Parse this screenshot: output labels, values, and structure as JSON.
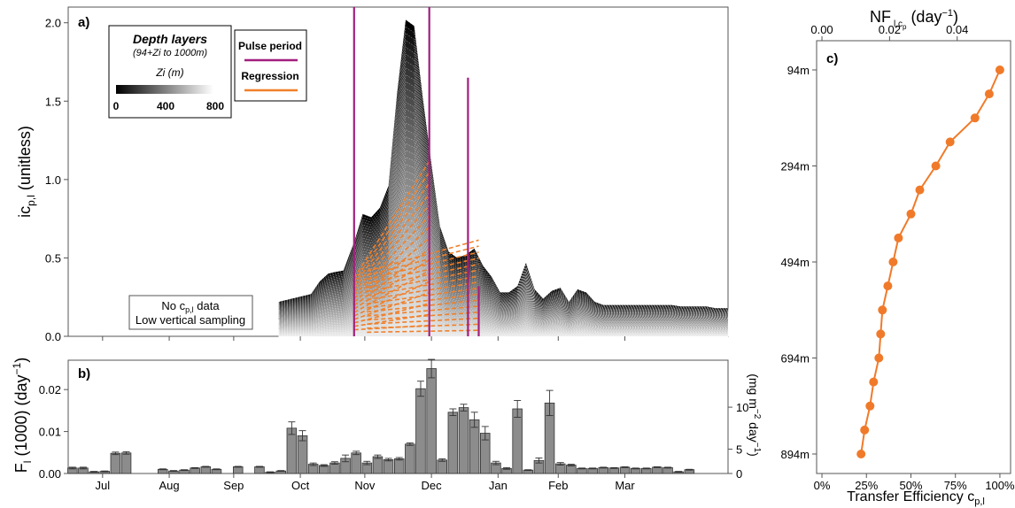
{
  "chart_data": [
    {
      "panel": "a)",
      "type": "area",
      "ylabel": "ic",
      "ylabel_sub": "p,l",
      "ylabel_unit": "(unitless)",
      "ylim": [
        0,
        2.1
      ],
      "yticks": [
        0.0,
        0.5,
        1.0,
        1.5,
        2.0
      ],
      "ytick_labels": [
        "0.0",
        "0.5",
        "1.0",
        "1.5",
        "2.0"
      ],
      "xlim": [
        0,
        307
      ],
      "x": [
        98,
        113,
        117,
        121,
        124,
        128,
        133,
        137,
        141,
        145,
        149,
        153,
        157,
        161,
        165,
        169,
        173,
        177,
        181,
        185,
        189,
        193,
        197,
        201,
        205,
        209,
        213,
        217,
        221,
        225,
        229,
        233,
        237,
        241,
        245,
        249,
        253,
        257,
        261,
        265,
        269,
        273,
        277,
        281,
        285,
        289,
        293,
        297,
        301,
        305,
        307
      ],
      "top_values": [
        0.22,
        0.27,
        0.35,
        0.4,
        0.41,
        0.42,
        0.6,
        0.78,
        0.76,
        0.82,
        0.96,
        1.55,
        2.02,
        1.98,
        1.52,
        1.1,
        0.7,
        0.54,
        0.5,
        0.52,
        0.56,
        0.45,
        0.38,
        0.28,
        0.28,
        0.32,
        0.47,
        0.3,
        0.24,
        0.29,
        0.31,
        0.22,
        0.3,
        0.28,
        0.22,
        0.2,
        0.2,
        0.2,
        0.2,
        0.2,
        0.2,
        0.2,
        0.2,
        0.2,
        0.19,
        0.19,
        0.19,
        0.19,
        0.18,
        0.18,
        0.18
      ],
      "depth_layers": 46,
      "pulse_period_lines": [
        133,
        168,
        186,
        191
      ],
      "legend_depth": {
        "title": "Depth layers",
        "subtitle": "(94+Zi to 1000m)",
        "bar_title": "Zi (m)",
        "bar_ticks": [
          "0",
          "400",
          "800"
        ]
      },
      "legend_lines": [
        {
          "name": "Pulse period",
          "color": "#a21f7e"
        },
        {
          "name": "Regression",
          "color": "#f0802a"
        }
      ],
      "annotation_line1": "No c",
      "annotation_line1_sub": "p,l",
      "annotation_line1_tail": " data",
      "annotation_line2": "Low vertical sampling"
    },
    {
      "panel": "b)",
      "type": "bar",
      "ylabel": "F",
      "ylabel_sub": "l",
      "ylabel_tail": " (1000) (day",
      "ylabel_sup": "−1",
      "ylabel_close": ")",
      "ylim": [
        0,
        0.027
      ],
      "yticks": [
        0.0,
        0.01,
        0.02
      ],
      "ytick_labels": [
        "0.00",
        "0.01",
        "0.02"
      ],
      "ylabel_right": "(mg m",
      "ylabel_right_sup": "−2",
      "ylabel_right_tail": " day",
      "ylabel_right_sup2": "−1",
      "ylabel_right_close": ")",
      "yticks_right": [
        0,
        5,
        10
      ],
      "ytick_labels_right": [
        "0",
        "5",
        "10"
      ],
      "yticks_right_positions": [
        0.0,
        0.0058,
        0.0158
      ],
      "x_months": [
        "Jul",
        "Aug",
        "Sep",
        "Oct",
        "Nov",
        "Dec",
        "Jan",
        "Feb",
        "Mar"
      ],
      "x_month_positions": [
        16,
        47,
        77,
        108,
        138,
        169,
        200,
        228,
        259
      ],
      "xlim": [
        0,
        307
      ],
      "bar_x": [
        2,
        7,
        12,
        17,
        22,
        27,
        44,
        49,
        54,
        59,
        64,
        69,
        79,
        89,
        94,
        99,
        104,
        109,
        114,
        119,
        124,
        129,
        134,
        139,
        144,
        149,
        154,
        159,
        164,
        169,
        174,
        179,
        184,
        189,
        194,
        199,
        204,
        209,
        214,
        219,
        224,
        229,
        234,
        239,
        244,
        249,
        254,
        259,
        264,
        269,
        274,
        279,
        284,
        289,
        294,
        299
      ],
      "bar_values": [
        0.0013,
        0.0013,
        0.0004,
        0.0005,
        0.0048,
        0.0049,
        0.001,
        0.0006,
        0.0008,
        0.0013,
        0.0016,
        0.001,
        0.0016,
        0.0016,
        0.0003,
        0.0006,
        0.0108,
        0.009,
        0.0022,
        0.0019,
        0.0025,
        0.0036,
        0.0049,
        0.0025,
        0.004,
        0.0033,
        0.0035,
        0.007,
        0.0202,
        0.025,
        0.0032,
        0.0146,
        0.0157,
        0.0128,
        0.0096,
        0.0025,
        0.0012,
        0.0154,
        0.0008,
        0.0031,
        0.0168,
        0.0023,
        0.002,
        0.0012,
        0.0012,
        0.0014,
        0.0013,
        0.0015,
        0.0012,
        0.0012,
        0.0015,
        0.0014,
        0.0004,
        0.0009,
        0.0,
        0.0
      ],
      "bar_errors": [
        0.0002,
        0.0002,
        0.0001,
        0.0001,
        0.0003,
        0.0003,
        0.0001,
        0.0001,
        0.0001,
        0.0001,
        0.0001,
        0.0001,
        0.0001,
        0.0001,
        0.0001,
        0.0001,
        0.0015,
        0.0012,
        0.0003,
        0.0002,
        0.0003,
        0.0008,
        0.0004,
        0.0004,
        0.0004,
        0.0003,
        0.0003,
        0.0003,
        0.0018,
        0.0022,
        0.0003,
        0.0008,
        0.0008,
        0.0018,
        0.0016,
        0.0004,
        0.0002,
        0.002,
        0.0001,
        0.0006,
        0.003,
        0.0003,
        0.0002,
        0.0001,
        0.0001,
        0.0001,
        0.0001,
        0.0001,
        0.0001,
        0.0001,
        0.0001,
        0.0001,
        0.0001,
        0.0001,
        0.0,
        0.0
      ],
      "bar_color": "#8c8c8c"
    },
    {
      "panel": "c)",
      "type": "line",
      "xlabel": "Transfer Efficiency c",
      "xlabel_sub": "p,l",
      "xlim": [
        -0.03,
        1.06
      ],
      "xticks": [
        0,
        0.25,
        0.5,
        0.75,
        1.0
      ],
      "xtick_labels": [
        "0%",
        "25%",
        "50%",
        "75%",
        "100%"
      ],
      "top_label": "NF",
      "top_label_sub": "l,c",
      "top_label_subsub": "p",
      "top_label_tail": " (day",
      "top_label_sup": "−1",
      "top_label_close": ")",
      "top_ticks": [
        0.0,
        0.02,
        0.04
      ],
      "top_tick_labels": [
        "0.00",
        "0.02",
        "0.04"
      ],
      "top_tick_positions": [
        0.0,
        0.38,
        0.76
      ],
      "ylim": [
        94,
        894
      ],
      "yticks": [
        94,
        294,
        494,
        694,
        894
      ],
      "ytick_labels": [
        "94m",
        "294m",
        "494m",
        "694m",
        "894m"
      ],
      "series": [
        {
          "color": "#f07a2a",
          "depth": [
            94,
            144,
            194,
            244,
            294,
            344,
            394,
            444,
            494,
            544,
            594,
            644,
            694,
            744,
            794,
            844,
            894
          ],
          "efficiency": [
            1.0,
            0.94,
            0.86,
            0.72,
            0.64,
            0.55,
            0.5,
            0.43,
            0.4,
            0.37,
            0.34,
            0.33,
            0.32,
            0.29,
            0.27,
            0.24,
            0.22
          ]
        }
      ]
    }
  ]
}
